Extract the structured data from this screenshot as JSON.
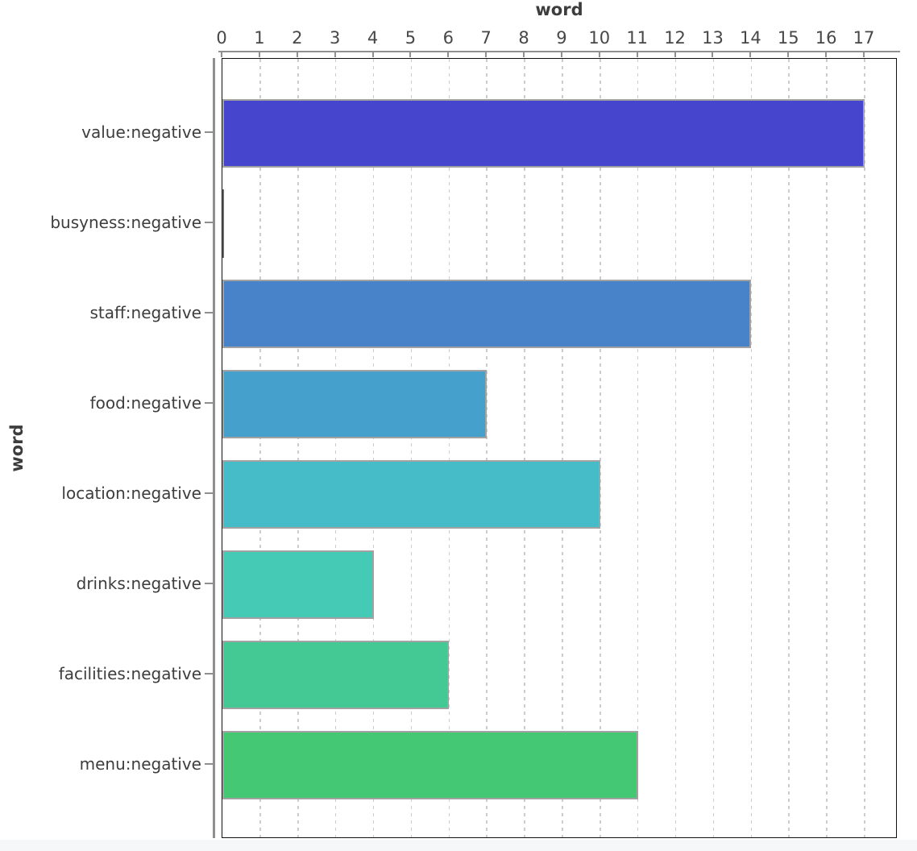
{
  "chart_data": {
    "type": "bar",
    "orientation": "horizontal",
    "title": "",
    "x_axis_title": "word",
    "y_axis_title": "word",
    "xlabel": "word",
    "ylabel": "word",
    "categories": [
      "value:negative",
      "busyness:negative",
      "staff:negative",
      "food:negative",
      "location:negative",
      "drinks:negative",
      "facilities:negative",
      "menu:negative"
    ],
    "values": [
      17,
      0,
      14,
      7,
      10,
      4,
      6,
      11
    ],
    "bar_colors": [
      "#4545cd",
      "#4663d2",
      "#4882c8",
      "#45a1cb",
      "#45bcc7",
      "#45cbb5",
      "#45c994",
      "#45c873"
    ],
    "x_ticks": [
      0,
      1,
      2,
      3,
      4,
      5,
      6,
      7,
      8,
      9,
      10,
      11,
      12,
      13,
      14,
      15,
      16,
      17
    ],
    "xlim": [
      0,
      17.875
    ],
    "grid": "vertical-dashed",
    "legend": "none"
  },
  "style": {
    "text_color": "#3d3d3d",
    "tick_text_color": "#474747",
    "axis_line_color": "#8f8f8f",
    "grid_color": "#cccccc",
    "bar_border_color": "#a2a2a2",
    "zero_bar_border_color": "#666666",
    "frame_color": "#111111",
    "footer_strip_color": "#f5f7f8"
  }
}
